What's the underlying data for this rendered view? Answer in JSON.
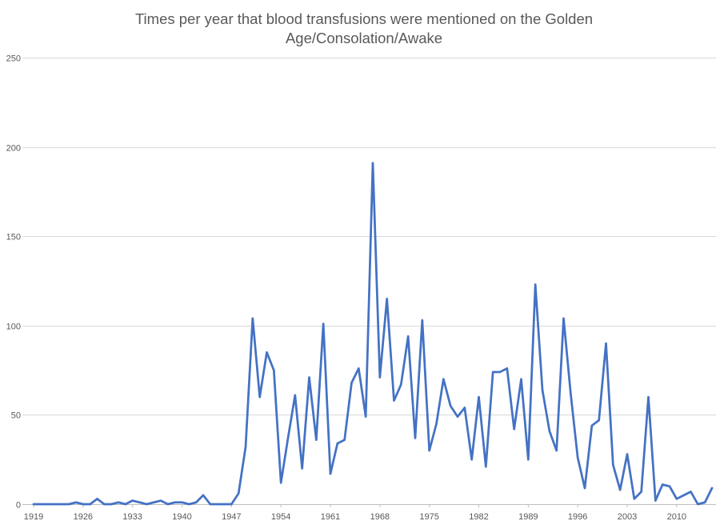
{
  "chart_data": {
    "type": "line",
    "title_line1": "Times per year that blood transfusions were mentioned on the Golden",
    "title_line2": "Age/Consolation/Awake",
    "xlabel": "",
    "ylabel": "",
    "ylim": [
      0,
      250
    ],
    "yticks": [
      0,
      50,
      100,
      150,
      200,
      250
    ],
    "xticks": [
      1919,
      1926,
      1933,
      1940,
      1947,
      1954,
      1961,
      1968,
      1975,
      1982,
      1989,
      1996,
      2003,
      2010
    ],
    "grid": true,
    "legend": "none",
    "line_color": "#4472c4",
    "x": [
      1919,
      1920,
      1921,
      1922,
      1923,
      1924,
      1925,
      1926,
      1927,
      1928,
      1929,
      1930,
      1931,
      1932,
      1933,
      1934,
      1935,
      1936,
      1937,
      1938,
      1939,
      1940,
      1941,
      1942,
      1943,
      1944,
      1945,
      1946,
      1947,
      1948,
      1949,
      1950,
      1951,
      1952,
      1953,
      1954,
      1955,
      1956,
      1957,
      1958,
      1959,
      1960,
      1961,
      1962,
      1963,
      1964,
      1965,
      1966,
      1967,
      1968,
      1969,
      1970,
      1971,
      1972,
      1973,
      1974,
      1975,
      1976,
      1977,
      1978,
      1979,
      1980,
      1981,
      1982,
      1983,
      1984,
      1985,
      1986,
      1987,
      1988,
      1989,
      1990,
      1991,
      1992,
      1993,
      1994,
      1995,
      1996,
      1997,
      1998,
      1999,
      2000,
      2001,
      2002,
      2003,
      2004,
      2005,
      2006,
      2007,
      2008,
      2009,
      2010,
      2011,
      2012,
      2013,
      2014,
      2015
    ],
    "values": [
      0,
      0,
      0,
      0,
      0,
      0,
      1,
      0,
      0,
      3,
      0,
      0,
      1,
      0,
      2,
      1,
      0,
      1,
      2,
      0,
      1,
      1,
      0,
      1,
      5,
      0,
      0,
      0,
      0,
      6,
      32,
      104,
      60,
      85,
      75,
      12,
      37,
      61,
      20,
      71,
      36,
      101,
      17,
      34,
      36,
      68,
      76,
      49,
      191,
      71,
      115,
      58,
      67,
      94,
      37,
      103,
      30,
      45,
      70,
      55,
      49,
      54,
      25,
      60,
      21,
      74,
      74,
      76,
      42,
      70,
      25,
      123,
      64,
      41,
      30,
      104,
      62,
      26,
      9,
      44,
      47,
      90,
      22,
      8,
      28,
      3,
      7,
      60,
      2,
      11,
      10,
      3,
      5,
      7,
      0,
      1,
      9
    ]
  }
}
